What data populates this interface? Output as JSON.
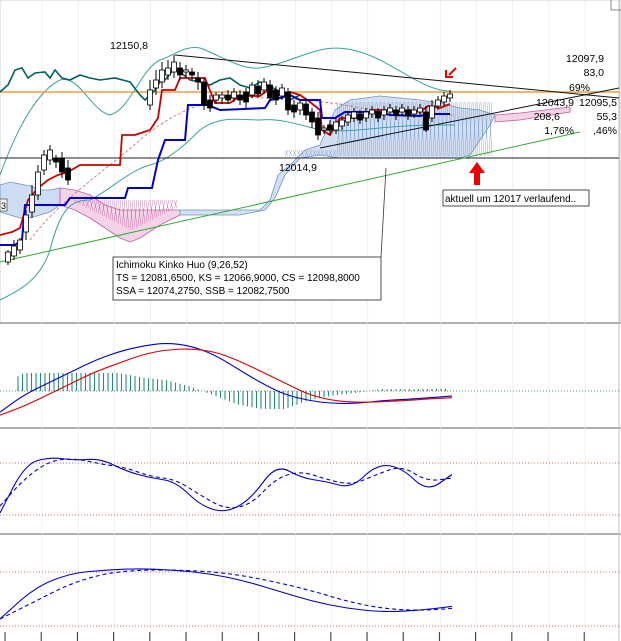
{
  "chart_data": [
    {
      "type": "line",
      "panel": "price",
      "title": "",
      "xlabel": "",
      "ylabel": "",
      "labels": {
        "high_marker": "12150,8",
        "low_marker": "12014,9"
      },
      "right_values": [
        "12097,9",
        "83,0",
        "69%",
        "12043,9",
        "12095,5",
        "208,6",
        "55,3",
        "1,76%",
        ",46%"
      ],
      "tooltip": {
        "line1": "Ichimoku Kinko Huo (9,26,52)",
        "line2": "TS = 12081,6500, KS = 12066,9000, CS = 12098,8000",
        "line3": "SSA = 12074,2750, SSB = 12082,7500"
      },
      "annotation": "aktuell um 12017 verlaufend..",
      "left_edge_label": "3",
      "colors": {
        "tenkan": "#cc0000",
        "kijun": "#0000cc",
        "chikou": "#006060",
        "bollinger": "#3aa0a0",
        "cloud_bull": "#8fb3e0",
        "cloud_bear": "#e07fc0",
        "trend_green": "#33aa33",
        "horizontal_orange": "#e8a040",
        "arrow": "#ee0000"
      }
    },
    {
      "type": "line",
      "panel": "macd",
      "series": [
        {
          "values": [
            -0.2,
            0.1,
            0.3,
            0.5,
            0.7,
            0.85,
            0.95,
            1.0,
            0.95,
            0.8,
            0.55,
            0.3,
            0.1,
            0.0,
            -0.05,
            -0.05,
            0.0,
            0.02,
            0.05,
            0.08
          ]
        },
        {
          "values": [
            -0.25,
            -0.1,
            0.1,
            0.3,
            0.5,
            0.65,
            0.8,
            0.88,
            0.9,
            0.85,
            0.7,
            0.5,
            0.3,
            0.1,
            0.0,
            -0.03,
            -0.02,
            0.0,
            0.03,
            0.05
          ]
        }
      ]
    },
    {
      "type": "line",
      "panel": "stochastic",
      "series": [
        {
          "values": [
            10,
            80,
            90,
            85,
            88,
            70,
            60,
            55,
            20,
            10,
            30,
            80,
            60,
            55,
            45,
            80,
            75,
            40,
            65
          ]
        },
        {
          "values": [
            20,
            60,
            85,
            88,
            80,
            75,
            62,
            58,
            35,
            15,
            22,
            60,
            70,
            58,
            50,
            65,
            78,
            55,
            60
          ]
        }
      ]
    },
    {
      "type": "line",
      "panel": "momentum",
      "series": [
        {
          "values": [
            10,
            55,
            75,
            80,
            82,
            80,
            75,
            65,
            50,
            35,
            25,
            20,
            22,
            28
          ]
        },
        {
          "values": [
            10,
            35,
            60,
            75,
            80,
            80,
            78,
            72,
            62,
            50,
            35,
            25,
            22,
            25
          ]
        }
      ]
    }
  ]
}
